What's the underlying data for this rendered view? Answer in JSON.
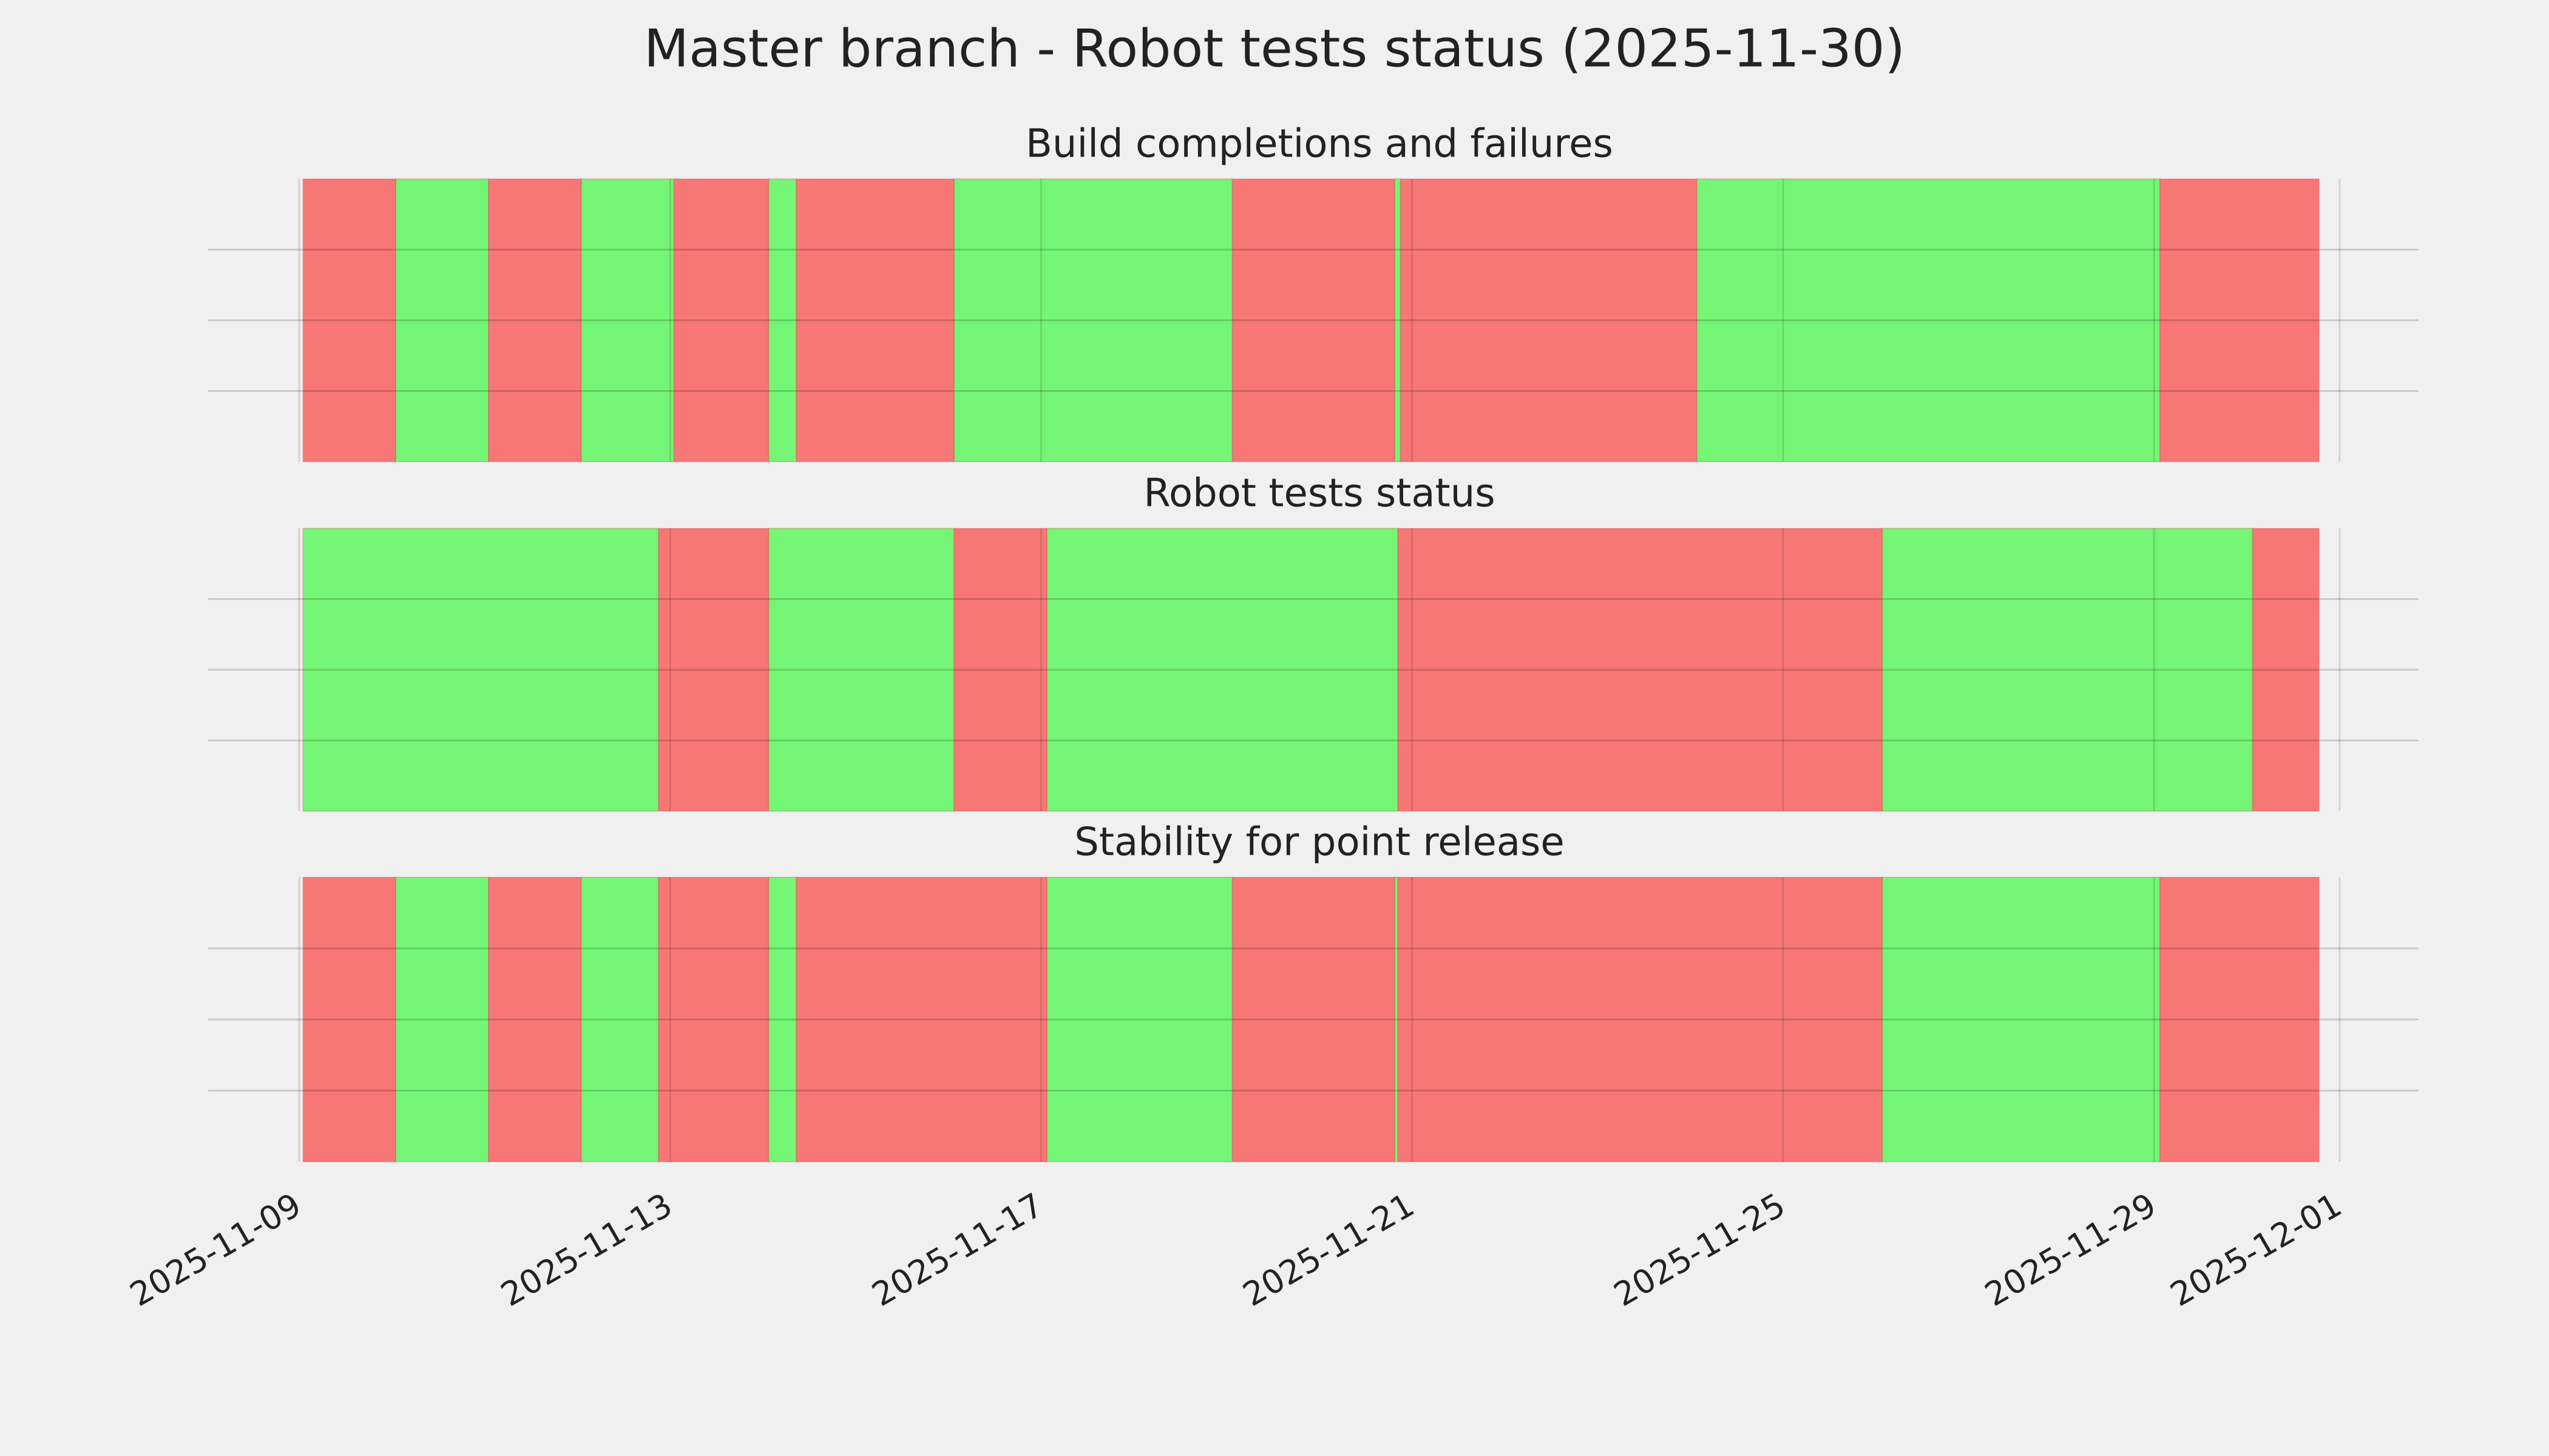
{
  "title": "Master branch - Robot tests status (2025-11-30)",
  "chart_data": [
    {
      "type": "timeline",
      "title": "Build completions and failures",
      "xlim": [
        "2025-11-09",
        "2025-12-01"
      ],
      "xticks": [
        "2025-11-09",
        "2025-11-13",
        "2025-11-17",
        "2025-11-21",
        "2025-11-25",
        "2025-11-29",
        "2025-12-01"
      ],
      "ylim": [
        0,
        1
      ],
      "yticks": [
        0.25,
        0.5,
        0.75
      ],
      "grid": true,
      "segments": [
        {
          "start": "2025-11-09 01:00",
          "end": "2025-11-10 01:00",
          "color": "#f77777"
        },
        {
          "start": "2025-11-10 01:00",
          "end": "2025-11-11 01:00",
          "color": "#75f575"
        },
        {
          "start": "2025-11-11 01:00",
          "end": "2025-11-12 01:00",
          "color": "#f77777"
        },
        {
          "start": "2025-11-12 01:00",
          "end": "2025-11-13 01:00",
          "color": "#75f575"
        },
        {
          "start": "2025-11-13 01:00",
          "end": "2025-11-14 01:30",
          "color": "#f77777"
        },
        {
          "start": "2025-11-14 01:30",
          "end": "2025-11-14 08:40",
          "color": "#75f575"
        },
        {
          "start": "2025-11-14 08:40",
          "end": "2025-11-16 01:30",
          "color": "#f77777"
        },
        {
          "start": "2025-11-16 01:30",
          "end": "2025-11-19 01:30",
          "color": "#75f575"
        },
        {
          "start": "2025-11-19 01:30",
          "end": "2025-11-20 19:30",
          "color": "#f77777"
        },
        {
          "start": "2025-11-20 19:30",
          "end": "2025-11-20 21:00",
          "color": "#75f575"
        },
        {
          "start": "2025-11-20 21:00",
          "end": "2025-11-24 01:40",
          "color": "#f77777"
        },
        {
          "start": "2025-11-24 01:40",
          "end": "2025-11-29 01:30",
          "color": "#75f575"
        },
        {
          "start": "2025-11-29 01:30",
          "end": "2025-11-30 18:40",
          "color": "#f77777"
        }
      ]
    },
    {
      "type": "timeline",
      "title": "Robot tests status",
      "xlim": [
        "2025-11-09",
        "2025-12-01"
      ],
      "xticks": [
        "2025-11-09",
        "2025-11-13",
        "2025-11-17",
        "2025-11-21",
        "2025-11-25",
        "2025-11-29",
        "2025-12-01"
      ],
      "ylim": [
        0,
        1
      ],
      "yticks": [
        0.25,
        0.5,
        0.75
      ],
      "grid": true,
      "segments": [
        {
          "start": "2025-11-09 01:00",
          "end": "2025-11-12 21:00",
          "color": "#75f575"
        },
        {
          "start": "2025-11-12 21:00",
          "end": "2025-11-14 01:30",
          "color": "#f77777"
        },
        {
          "start": "2025-11-14 01:30",
          "end": "2025-11-16 01:30",
          "color": "#75f575"
        },
        {
          "start": "2025-11-16 01:30",
          "end": "2025-11-17 01:30",
          "color": "#f77777"
        },
        {
          "start": "2025-11-17 01:30",
          "end": "2025-11-20 20:20",
          "color": "#75f575"
        },
        {
          "start": "2025-11-20 20:20",
          "end": "2025-11-26 01:40",
          "color": "#f77777"
        },
        {
          "start": "2025-11-26 01:40",
          "end": "2025-11-30 01:30",
          "color": "#75f575"
        },
        {
          "start": "2025-11-30 01:30",
          "end": "2025-11-30 18:40",
          "color": "#f77777"
        }
      ]
    },
    {
      "type": "timeline",
      "title": "Stability for point release",
      "xlim": [
        "2025-11-09",
        "2025-12-01"
      ],
      "xticks": [
        "2025-11-09",
        "2025-11-13",
        "2025-11-17",
        "2025-11-21",
        "2025-11-25",
        "2025-11-29",
        "2025-12-01"
      ],
      "ylim": [
        0,
        1
      ],
      "yticks": [
        0.25,
        0.5,
        0.75
      ],
      "grid": true,
      "segments": [
        {
          "start": "2025-11-09 01:00",
          "end": "2025-11-10 01:00",
          "color": "#f77777"
        },
        {
          "start": "2025-11-10 01:00",
          "end": "2025-11-11 01:00",
          "color": "#75f575"
        },
        {
          "start": "2025-11-11 01:00",
          "end": "2025-11-12 01:00",
          "color": "#f77777"
        },
        {
          "start": "2025-11-12 01:00",
          "end": "2025-11-12 21:00",
          "color": "#75f575"
        },
        {
          "start": "2025-11-12 21:00",
          "end": "2025-11-14 01:30",
          "color": "#f77777"
        },
        {
          "start": "2025-11-14 01:30",
          "end": "2025-11-14 08:40",
          "color": "#75f575"
        },
        {
          "start": "2025-11-14 08:40",
          "end": "2025-11-17 01:30",
          "color": "#f77777"
        },
        {
          "start": "2025-11-17 01:30",
          "end": "2025-11-19 01:30",
          "color": "#75f575"
        },
        {
          "start": "2025-11-19 01:30",
          "end": "2025-11-20 19:30",
          "color": "#f77777"
        },
        {
          "start": "2025-11-20 19:30",
          "end": "2025-11-20 20:20",
          "color": "#75f575"
        },
        {
          "start": "2025-11-20 20:20",
          "end": "2025-11-26 01:40",
          "color": "#f77777"
        },
        {
          "start": "2025-11-26 01:40",
          "end": "2025-11-29 01:30",
          "color": "#75f575"
        },
        {
          "start": "2025-11-29 01:30",
          "end": "2025-11-30 18:40",
          "color": "#f77777"
        }
      ]
    }
  ]
}
